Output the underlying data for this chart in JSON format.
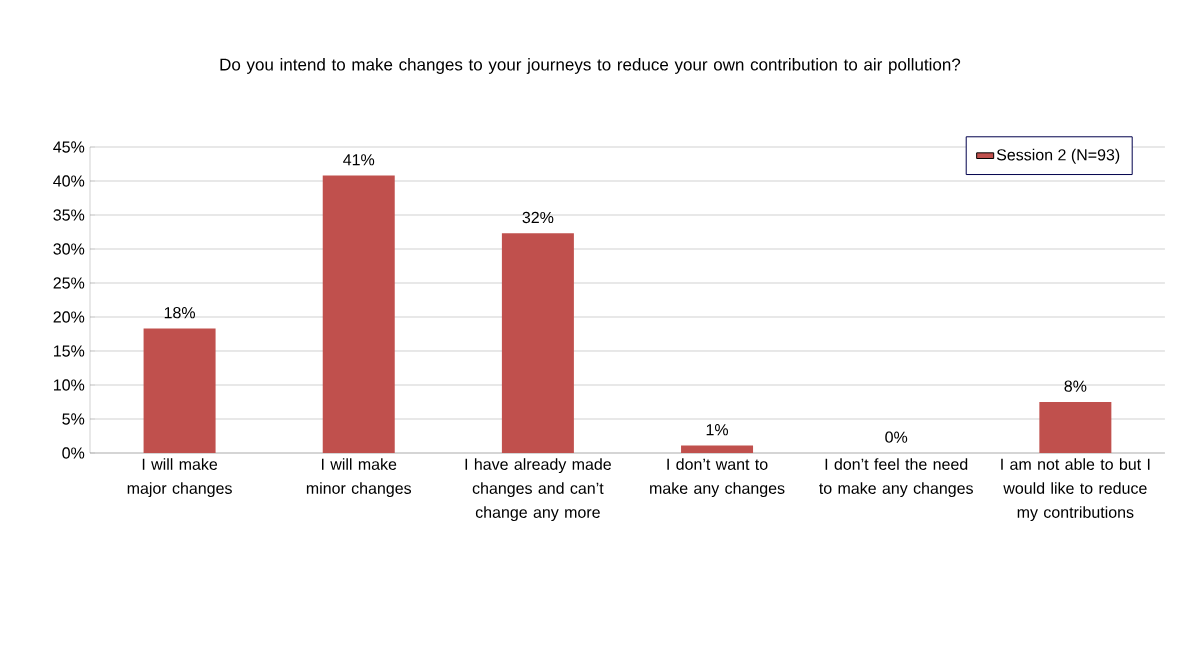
{
  "chart_data": {
    "type": "bar",
    "title": "Do you intend to make changes to your journeys to reduce your own contribution to air pollution?",
    "categories": [
      "I will make major changes",
      "I will make minor changes",
      "I have already made changes and can’t change any more",
      "I don’t want to make any changes",
      "I don’t feel the need to make any changes",
      "I am not able to but I would like to reduce my contributions"
    ],
    "series": [
      {
        "name": "Session 2 (N=93)",
        "color": "#c0504d",
        "values": [
          18.3,
          40.8,
          32.3,
          1.1,
          0,
          7.5
        ],
        "value_labels": [
          "18%",
          "41%",
          "32%",
          "1%",
          "0%",
          "8%"
        ]
      }
    ],
    "ylim": [
      0,
      45
    ],
    "yticks": [
      {
        "value": 0,
        "label": "0%"
      },
      {
        "value": 5,
        "label": "5%"
      },
      {
        "value": 10,
        "label": "10%"
      },
      {
        "value": 15,
        "label": "15%"
      },
      {
        "value": 20,
        "label": "20%"
      },
      {
        "value": 25,
        "label": "25%"
      },
      {
        "value": 30,
        "label": "30%"
      },
      {
        "value": 35,
        "label": "35%"
      },
      {
        "value": 40,
        "label": "40%"
      },
      {
        "value": 45,
        "label": "45%"
      }
    ],
    "grid": "y",
    "legend": "top right"
  }
}
